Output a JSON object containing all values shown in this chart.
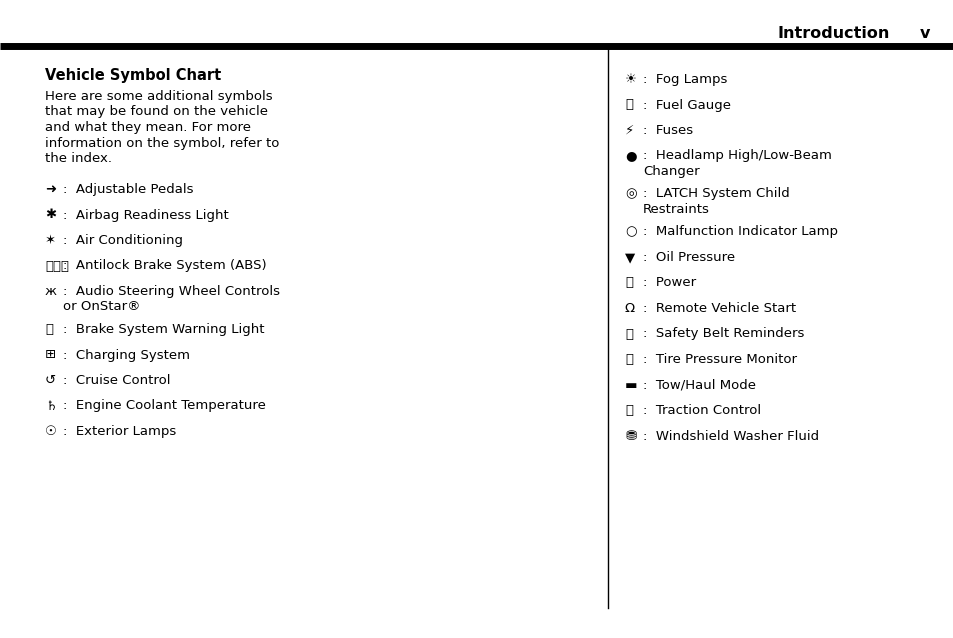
{
  "bg_color": "#ffffff",
  "header_text": "Introduction",
  "header_page": "v",
  "title": "Vehicle Symbol Chart",
  "intro_lines": [
    "Here are some additional symbols",
    "that may be found on the vehicle",
    "and what they mean. For more",
    "information on the symbol, refer to",
    "the index."
  ],
  "left_items": [
    [
      "✔",
      ":  Adjustable Pedals",
      false
    ],
    [
      "✔",
      ":  Airbag Readiness Light",
      false
    ],
    [
      "✔",
      ":  Air Conditioning",
      false
    ],
    [
      "✔",
      ":  Antilock Brake System (ABS)",
      false
    ],
    [
      "✔",
      ":  Audio Steering Wheel Controls",
      true
    ],
    [
      "✔",
      ":  Brake System Warning Light",
      false
    ],
    [
      "✔",
      ":  Charging System",
      false
    ],
    [
      "✔",
      ":  Cruise Control",
      false
    ],
    [
      "✔",
      ":  Engine Coolant Temperature",
      false
    ],
    [
      "✔",
      ":  Exterior Lamps",
      false
    ]
  ],
  "left_item2": "or OnStar®",
  "right_items": [
    [
      "✔",
      ":  Fog Lamps",
      false
    ],
    [
      "✔",
      ":  Fuel Gauge",
      false
    ],
    [
      "✔",
      ":  Fuses",
      false
    ],
    [
      "✔",
      ":  Headlamp High/Low-Beam",
      true
    ],
    [
      "✔",
      ":  LATCH System Child",
      true
    ],
    [
      "✔",
      ":  Malfunction Indicator Lamp",
      false
    ],
    [
      "✔",
      ":  Oil Pressure",
      false
    ],
    [
      "✔",
      ":  Power",
      false
    ],
    [
      "✔",
      ":  Remote Vehicle Start",
      false
    ],
    [
      "✔",
      ":  Safety Belt Reminders",
      false
    ],
    [
      "✔",
      ":  Tire Pressure Monitor",
      false
    ],
    [
      "✔",
      ":  Tow/Haul Mode",
      false
    ],
    [
      "✔",
      ":  Traction Control",
      false
    ],
    [
      "✔",
      ":  Windshield Washer Fluid",
      false
    ]
  ],
  "right_item2": [
    "Changer",
    "Restraints"
  ],
  "font_size_body": 9.5,
  "font_size_title": 10.5,
  "font_size_header": 11.5
}
